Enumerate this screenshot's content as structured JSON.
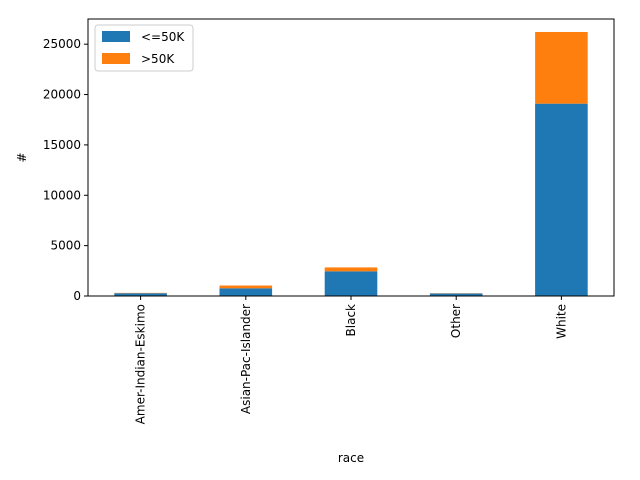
{
  "chart_data": {
    "type": "bar",
    "stacked": true,
    "categories": [
      "Amer-Indian-Eskimo",
      "Asian-Pac-Islander",
      "Black",
      "Other",
      "White"
    ],
    "series": [
      {
        "name": "<=50K",
        "values": [
          275,
          763,
          2451,
          246,
          19094
        ],
        "color": "#1f77b4"
      },
      {
        "name": ">50K",
        "values": [
          36,
          276,
          387,
          25,
          7117
        ],
        "color": "#ff7f0e"
      }
    ],
    "title": "",
    "xlabel": "race",
    "ylabel": "#",
    "ylim": [
      0,
      27500
    ],
    "yticks": [
      0,
      5000,
      10000,
      15000,
      20000,
      25000
    ],
    "legend_position": "top-left",
    "grid": false
  }
}
